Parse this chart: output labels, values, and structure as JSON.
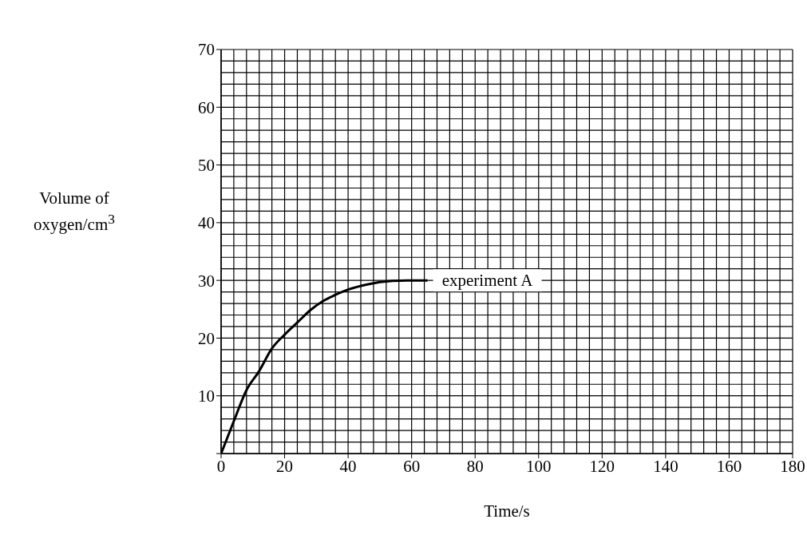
{
  "chart_data": {
    "type": "line",
    "xlabel": "Time/s",
    "ylabel": "Volume of oxygen/cm$^{3}$",
    "x": [
      0,
      4,
      8,
      12,
      16,
      20,
      24,
      28,
      32,
      36,
      40,
      46,
      54,
      60,
      65
    ],
    "series": [
      {
        "color": "#000000",
        "values": [
          0,
          5.6,
          11,
          14.3,
          18.2,
          20.6,
          22.7,
          24.8,
          26.4,
          27.5,
          28.4,
          29.3,
          29.9,
          30,
          30
        ]
      }
    ],
    "annotations": [
      "experiment A"
    ],
    "xlim": [
      0,
      180
    ],
    "xticks": [
      0,
      20,
      40,
      60,
      80,
      100,
      120,
      140,
      160,
      180
    ],
    "ylim": [
      0,
      70
    ],
    "yticks": [
      {
        "value": 0,
        "label": null
      },
      10,
      20,
      30,
      40,
      50,
      60,
      70
    ],
    "grid": true,
    "marker": "none",
    "line_style": "solid"
  }
}
